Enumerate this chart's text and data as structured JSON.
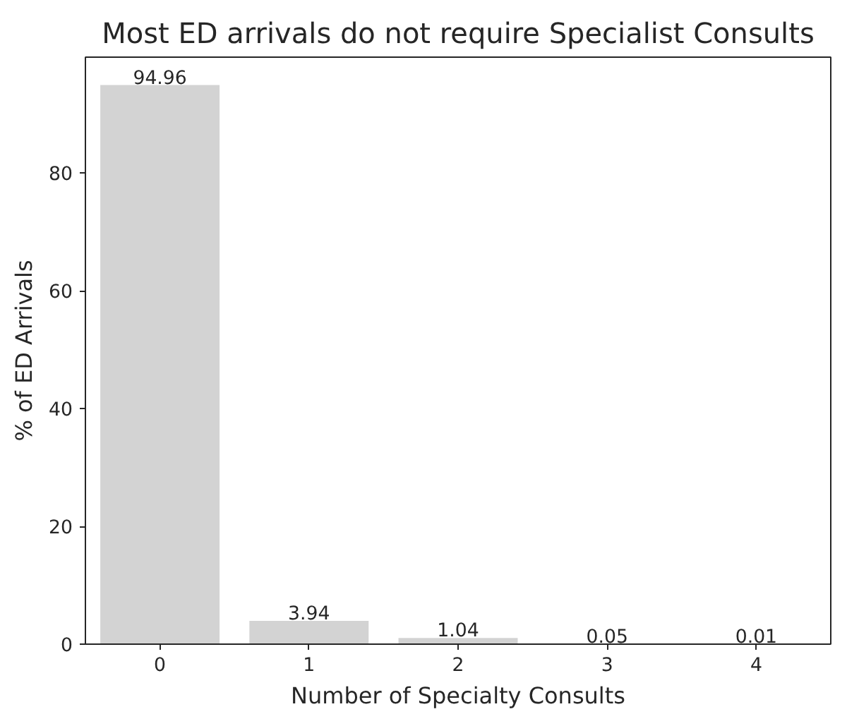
{
  "chart_data": {
    "type": "bar",
    "title": "Most ED arrivals do not require Specialist Consults",
    "xlabel": "Number of Specialty Consults",
    "ylabel": "% of ED Arrivals",
    "categories": [
      "0",
      "1",
      "2",
      "3",
      "4"
    ],
    "values": [
      94.96,
      3.94,
      1.04,
      0.05,
      0.01
    ],
    "color": "#d3d3d3",
    "ylim": [
      0,
      99.7
    ],
    "yticks": [
      0,
      20,
      40,
      60,
      80
    ],
    "grid": false,
    "data_labels": true
  }
}
